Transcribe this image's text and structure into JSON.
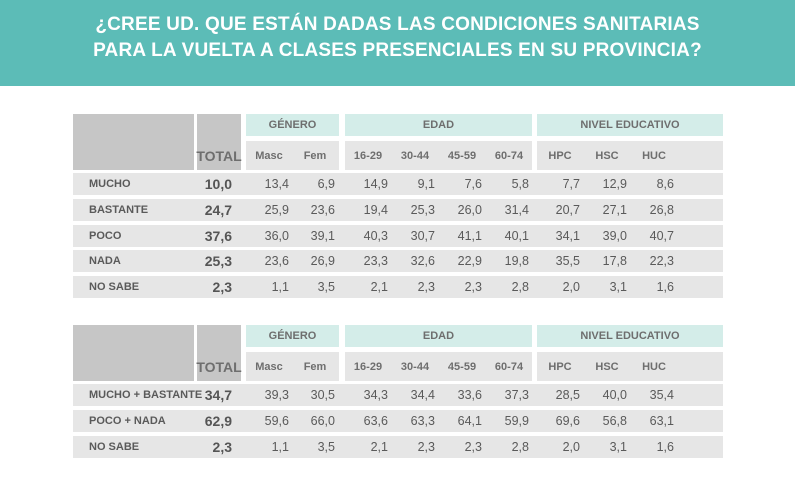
{
  "title": {
    "line1": "¿CREE UD. QUE ESTÁN DADAS LAS CONDICIONES SANITARIAS",
    "line2": "PARA LA VUELTA A CLASES PRESENCIALES EN SU PROVINCIA?"
  },
  "colors": {
    "banner": "#5cbcb7",
    "group_header": "#d4ede9",
    "row_band": "#e6e6e6",
    "header_gray": "#c6c6c6"
  },
  "tables": [
    {
      "total_label": "TOTAL",
      "groups": [
        {
          "label": "GÉNERO",
          "subs": [
            "Masc",
            "Fem"
          ]
        },
        {
          "label": "EDAD",
          "subs": [
            "16-29",
            "30-44",
            "45-59",
            "60-74"
          ]
        },
        {
          "label": "NIVEL EDUCATIVO",
          "subs": [
            "HPC",
            "HSC",
            "HUC"
          ]
        }
      ],
      "rows": [
        {
          "label": "MUCHO",
          "total": "10,0",
          "values": [
            "13,4",
            "6,9",
            "14,9",
            "9,1",
            "7,6",
            "5,8",
            "7,7",
            "12,9",
            "8,6"
          ]
        },
        {
          "label": "BASTANTE",
          "total": "24,7",
          "values": [
            "25,9",
            "23,6",
            "19,4",
            "25,3",
            "26,0",
            "31,4",
            "20,7",
            "27,1",
            "26,8"
          ]
        },
        {
          "label": "POCO",
          "total": "37,6",
          "values": [
            "36,0",
            "39,1",
            "40,3",
            "30,7",
            "41,1",
            "40,1",
            "34,1",
            "39,0",
            "40,7"
          ]
        },
        {
          "label": "NADA",
          "total": "25,3",
          "values": [
            "23,6",
            "26,9",
            "23,3",
            "32,6",
            "22,9",
            "19,8",
            "35,5",
            "17,8",
            "22,3"
          ]
        },
        {
          "label": "NO SABE",
          "total": "2,3",
          "values": [
            "1,1",
            "3,5",
            "2,1",
            "2,3",
            "2,3",
            "2,8",
            "2,0",
            "3,1",
            "1,6"
          ]
        }
      ]
    },
    {
      "total_label": "TOTAL",
      "groups": [
        {
          "label": "GÉNERO",
          "subs": [
            "Masc",
            "Fem"
          ]
        },
        {
          "label": "EDAD",
          "subs": [
            "16-29",
            "30-44",
            "45-59",
            "60-74"
          ]
        },
        {
          "label": "NIVEL EDUCATIVO",
          "subs": [
            "HPC",
            "HSC",
            "HUC"
          ]
        }
      ],
      "rows": [
        {
          "label": "MUCHO + BASTANTE",
          "total": "34,7",
          "values": [
            "39,3",
            "30,5",
            "34,3",
            "34,4",
            "33,6",
            "37,3",
            "28,5",
            "40,0",
            "35,4"
          ]
        },
        {
          "label": "POCO + NADA",
          "total": "62,9",
          "values": [
            "59,6",
            "66,0",
            "63,6",
            "63,3",
            "64,1",
            "59,9",
            "69,6",
            "56,8",
            "63,1"
          ]
        },
        {
          "label": "NO SABE",
          "total": "2,3",
          "values": [
            "1,1",
            "3,5",
            "2,1",
            "2,3",
            "2,3",
            "2,8",
            "2,0",
            "3,1",
            "1,6"
          ]
        }
      ]
    }
  ]
}
